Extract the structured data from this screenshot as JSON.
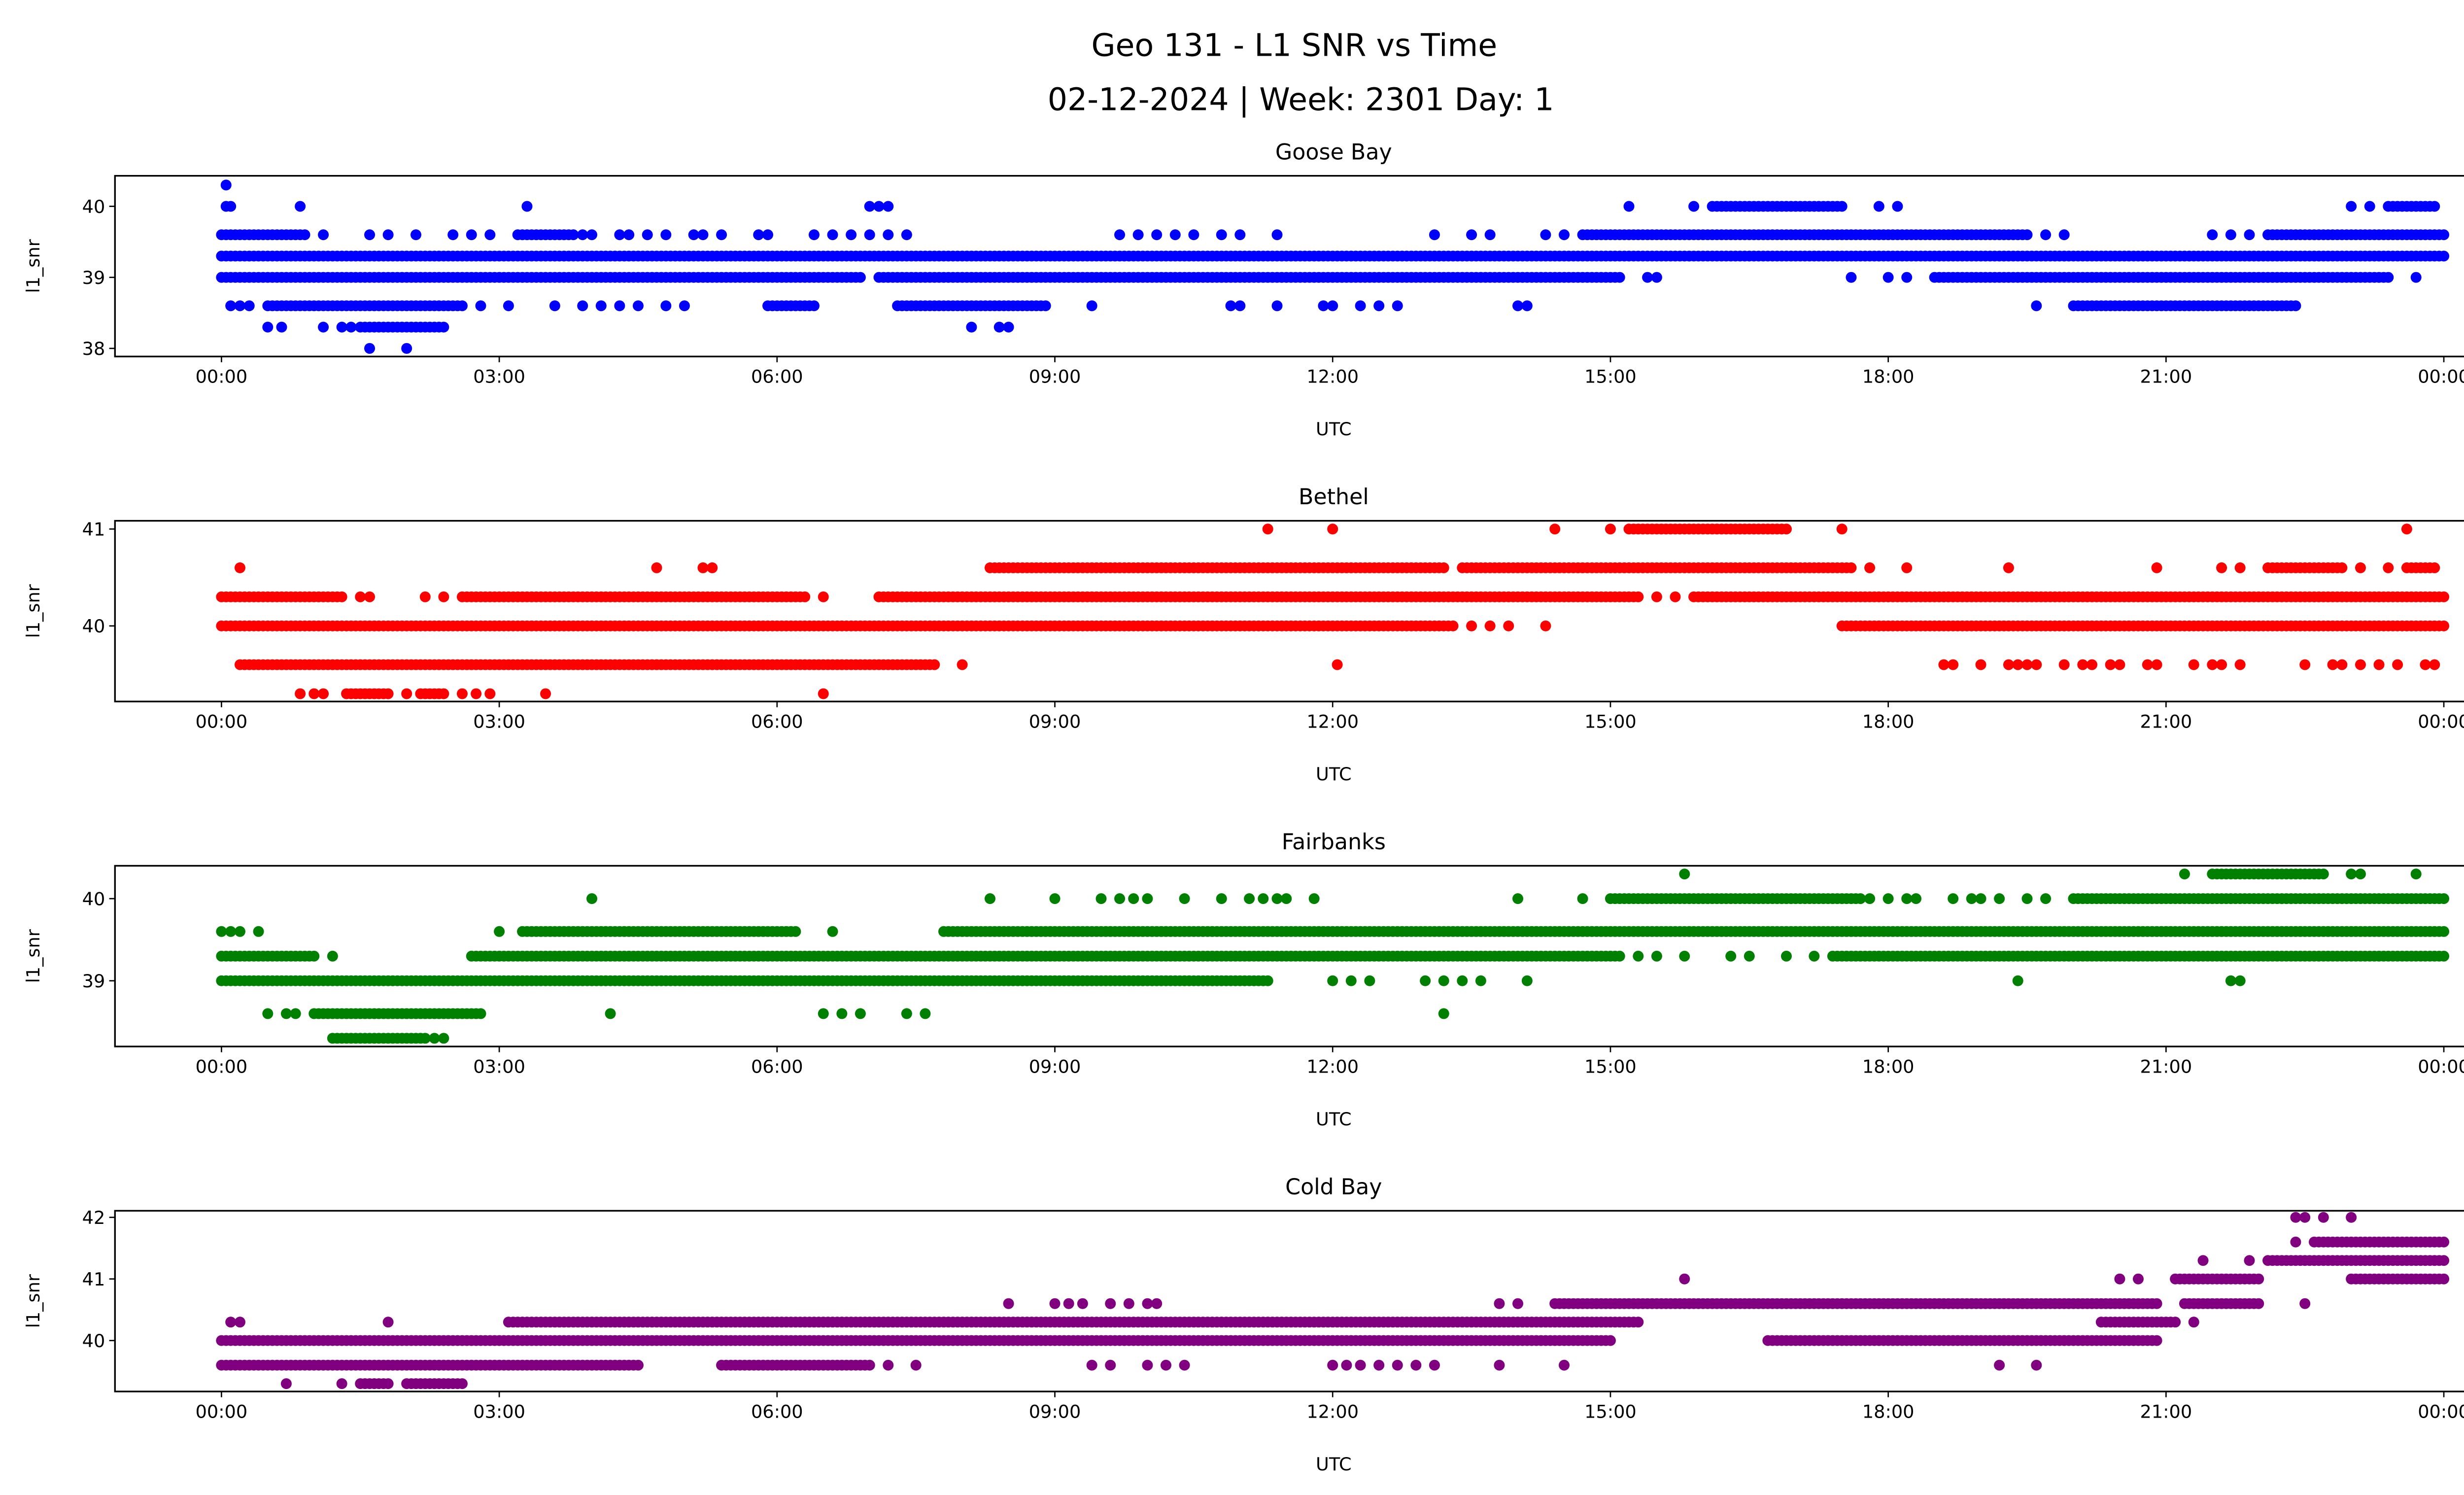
{
  "title": {
    "line1": "Geo 131 - L1 SNR vs Time",
    "line2": "02-12-2024 | Week: 2301 Day: 1"
  },
  "chart_data": [
    {
      "type": "scatter",
      "title": "Goose Bay",
      "xlabel": "UTC",
      "ylabel": "l1_snr",
      "color": "#0000ff",
      "xlim": [
        -1.15,
        25.19
      ],
      "ylim": [
        37.886,
        40.43
      ],
      "xticks": [
        {
          "v": 0,
          "label": "00:00"
        },
        {
          "v": 3,
          "label": "03:00"
        },
        {
          "v": 6,
          "label": "06:00"
        },
        {
          "v": 9,
          "label": "09:00"
        },
        {
          "v": 12,
          "label": "12:00"
        },
        {
          "v": 15,
          "label": "15:00"
        },
        {
          "v": 18,
          "label": "18:00"
        },
        {
          "v": 21,
          "label": "21:00"
        },
        {
          "v": 24,
          "label": "00:00"
        }
      ],
      "yticks": [
        38,
        39,
        40
      ],
      "levels": [
        {
          "y": 40.3,
          "runs": [],
          "points": [
            0.05
          ]
        },
        {
          "y": 40.0,
          "runs": [
            [
              16.1,
              17.5
            ],
            [
              23.4,
              23.9
            ]
          ],
          "points": [
            0.05,
            0.1,
            0.85,
            3.3,
            7.0,
            7.1,
            7.2,
            15.2,
            15.9,
            17.9,
            18.1,
            23.0,
            23.2
          ]
        },
        {
          "y": 39.6,
          "runs": [
            [
              0,
              0.9
            ],
            [
              3.2,
              3.8
            ],
            [
              14.7,
              19.5
            ],
            [
              22.1,
              24
            ]
          ],
          "points": [
            1.1,
            1.6,
            1.8,
            2.1,
            2.5,
            2.7,
            2.9,
            3.9,
            4.0,
            4.3,
            4.4,
            4.6,
            4.8,
            5.1,
            5.2,
            5.4,
            5.8,
            5.9,
            6.4,
            6.6,
            6.8,
            7.0,
            7.2,
            7.4,
            9.7,
            9.9,
            10.1,
            10.3,
            10.5,
            10.8,
            11.0,
            11.4,
            13.1,
            13.5,
            13.7,
            14.3,
            14.5,
            19.7,
            19.9,
            21.5,
            21.7,
            21.9
          ]
        },
        {
          "y": 39.3,
          "runs": [
            [
              0,
              24
            ]
          ],
          "points": []
        },
        {
          "y": 39.0,
          "runs": [
            [
              0,
              6.9
            ],
            [
              7.1,
              15.1
            ],
            [
              18.5,
              23.4
            ]
          ],
          "points": [
            15.4,
            15.5,
            17.6,
            18.0,
            18.2,
            23.7
          ]
        },
        {
          "y": 38.6,
          "runs": [
            [
              0.5,
              2.6
            ],
            [
              5.9,
              6.4
            ],
            [
              7.3,
              8.9
            ],
            [
              20.0,
              22.4
            ]
          ],
          "points": [
            0.1,
            0.2,
            0.3,
            2.8,
            3.1,
            3.6,
            3.9,
            4.1,
            4.3,
            4.5,
            4.8,
            5.0,
            9.4,
            10.9,
            11.0,
            11.4,
            11.9,
            12.0,
            12.3,
            12.5,
            12.7,
            14.0,
            14.1,
            19.6
          ]
        },
        {
          "y": 38.3,
          "runs": [
            [
              1.5,
              2.4
            ]
          ],
          "points": [
            0.5,
            0.65,
            1.1,
            1.3,
            1.4,
            8.1,
            8.4,
            8.5
          ]
        },
        {
          "y": 38.0,
          "runs": [],
          "points": [
            1.6,
            2.0
          ]
        }
      ]
    },
    {
      "type": "scatter",
      "title": "Bethel",
      "xlabel": "UTC",
      "ylabel": "l1_snr",
      "color": "#ff0000",
      "xlim": [
        -1.15,
        25.19
      ],
      "ylim": [
        39.22,
        41.085
      ],
      "xticks": [
        {
          "v": 0,
          "label": "00:00"
        },
        {
          "v": 3,
          "label": "03:00"
        },
        {
          "v": 6,
          "label": "06:00"
        },
        {
          "v": 9,
          "label": "09:00"
        },
        {
          "v": 12,
          "label": "12:00"
        },
        {
          "v": 15,
          "label": "15:00"
        },
        {
          "v": 18,
          "label": "18:00"
        },
        {
          "v": 21,
          "label": "21:00"
        },
        {
          "v": 24,
          "label": "00:00"
        }
      ],
      "yticks": [
        40,
        41
      ],
      "levels": [
        {
          "y": 41.0,
          "runs": [
            [
              15.2,
              16.9
            ]
          ],
          "points": [
            11.3,
            12.0,
            14.4,
            15.0,
            17.5,
            23.6
          ]
        },
        {
          "y": 40.6,
          "runs": [
            [
              8.3,
              13.2
            ],
            [
              13.4,
              17.6
            ],
            [
              22.1,
              22.9
            ],
            [
              23.6,
              23.9
            ]
          ],
          "points": [
            0.2,
            4.7,
            5.2,
            5.3,
            17.8,
            18.2,
            19.3,
            20.9,
            21.6,
            21.8,
            23.1,
            23.4
          ]
        },
        {
          "y": 40.3,
          "runs": [
            [
              0,
              1.3
            ],
            [
              2.6,
              6.3
            ],
            [
              7.1,
              15.3
            ],
            [
              15.9,
              24
            ]
          ],
          "points": [
            1.5,
            1.6,
            2.2,
            2.4,
            6.5,
            15.5,
            15.7
          ]
        },
        {
          "y": 40.0,
          "runs": [
            [
              0,
              13.3
            ],
            [
              17.5,
              24
            ]
          ],
          "points": [
            13.5,
            13.7,
            13.9,
            14.3
          ]
        },
        {
          "y": 39.6,
          "runs": [
            [
              0.2,
              7.7
            ]
          ],
          "points": [
            8.0,
            12.05,
            18.6,
            18.7,
            19.0,
            19.3,
            19.4,
            19.5,
            19.6,
            19.9,
            20.1,
            20.2,
            20.4,
            20.5,
            20.8,
            20.9,
            21.3,
            21.5,
            21.6,
            21.8,
            22.5,
            22.8,
            22.9,
            23.1,
            23.3,
            23.5,
            23.8,
            23.9
          ]
        },
        {
          "y": 39.3,
          "runs": [
            [
              1.35,
              1.8
            ],
            [
              2.15,
              2.4
            ]
          ],
          "points": [
            0.85,
            1.0,
            1.1,
            2.0,
            2.6,
            2.75,
            2.9,
            3.5,
            6.5
          ]
        }
      ]
    },
    {
      "type": "scatter",
      "title": "Fairbanks",
      "xlabel": "UTC",
      "ylabel": "l1_snr",
      "color": "#008000",
      "xlim": [
        -1.15,
        25.19
      ],
      "ylim": [
        38.2,
        40.4
      ],
      "xticks": [
        {
          "v": 0,
          "label": "00:00"
        },
        {
          "v": 3,
          "label": "03:00"
        },
        {
          "v": 6,
          "label": "06:00"
        },
        {
          "v": 9,
          "label": "09:00"
        },
        {
          "v": 12,
          "label": "12:00"
        },
        {
          "v": 15,
          "label": "15:00"
        },
        {
          "v": 18,
          "label": "18:00"
        },
        {
          "v": 21,
          "label": "21:00"
        },
        {
          "v": 24,
          "label": "00:00"
        }
      ],
      "yticks": [
        39,
        40
      ],
      "levels": [
        {
          "y": 40.3,
          "runs": [
            [
              21.5,
              22.7
            ]
          ],
          "points": [
            15.8,
            21.2,
            23.0,
            23.1,
            23.7
          ]
        },
        {
          "y": 40.0,
          "runs": [
            [
              15.0,
              17.7
            ],
            [
              20.0,
              24
            ]
          ],
          "points": [
            4.0,
            8.3,
            9.0,
            9.5,
            9.7,
            9.85,
            10.0,
            10.4,
            10.8,
            11.1,
            11.25,
            11.4,
            11.5,
            11.8,
            14.0,
            14.7,
            17.8,
            18.0,
            18.2,
            18.3,
            18.7,
            18.9,
            19.0,
            19.2,
            19.5,
            19.7
          ]
        },
        {
          "y": 39.6,
          "runs": [
            [
              3.25,
              6.2
            ],
            [
              7.8,
              24
            ]
          ],
          "points": [
            0.0,
            0.1,
            0.2,
            0.4,
            3.0,
            6.6
          ]
        },
        {
          "y": 39.3,
          "runs": [
            [
              0,
              1.0
            ],
            [
              2.7,
              15.1
            ],
            [
              17.4,
              24
            ]
          ],
          "points": [
            1.2,
            15.3,
            15.5,
            15.8,
            16.3,
            16.5,
            16.9,
            17.2
          ]
        },
        {
          "y": 39.0,
          "runs": [
            [
              0,
              11.3
            ]
          ],
          "points": [
            12.0,
            12.2,
            12.4,
            13.0,
            13.2,
            13.4,
            13.6,
            14.1,
            19.4,
            21.7,
            21.8
          ]
        },
        {
          "y": 38.6,
          "runs": [
            [
              1.0,
              2.8
            ]
          ],
          "points": [
            0.5,
            0.7,
            0.8,
            4.2,
            6.5,
            6.7,
            6.9,
            7.4,
            7.6,
            13.2
          ]
        },
        {
          "y": 38.3,
          "runs": [
            [
              1.2,
              2.2
            ]
          ],
          "points": [
            2.3,
            2.4
          ]
        }
      ]
    },
    {
      "type": "scatter",
      "title": "Cold Bay",
      "xlabel": "UTC",
      "ylabel": "l1_snr",
      "color": "#800080",
      "xlim": [
        -1.15,
        25.19
      ],
      "ylim": [
        39.173,
        42.107
      ],
      "xticks": [
        {
          "v": 0,
          "label": "00:00"
        },
        {
          "v": 3,
          "label": "03:00"
        },
        {
          "v": 6,
          "label": "06:00"
        },
        {
          "v": 9,
          "label": "09:00"
        },
        {
          "v": 12,
          "label": "12:00"
        },
        {
          "v": 15,
          "label": "15:00"
        },
        {
          "v": 18,
          "label": "18:00"
        },
        {
          "v": 21,
          "label": "21:00"
        },
        {
          "v": 24,
          "label": "00:00"
        }
      ],
      "yticks": [
        40,
        41,
        42
      ],
      "levels": [
        {
          "y": 42.0,
          "runs": [],
          "points": [
            22.4,
            22.5,
            22.7,
            23.0
          ]
        },
        {
          "y": 41.6,
          "runs": [
            [
              22.6,
              24
            ]
          ],
          "points": [
            22.4
          ]
        },
        {
          "y": 41.3,
          "runs": [
            [
              22.1,
              24
            ]
          ],
          "points": [
            21.4,
            21.9
          ]
        },
        {
          "y": 41.0,
          "runs": [
            [
              21.1,
              22.0
            ],
            [
              23.0,
              24
            ]
          ],
          "points": [
            15.8,
            20.5,
            20.7
          ]
        },
        {
          "y": 40.6,
          "runs": [
            [
              14.4,
              20.9
            ],
            [
              21.2,
              22.0
            ]
          ],
          "points": [
            8.5,
            9.0,
            9.15,
            9.3,
            9.6,
            9.8,
            10.0,
            10.1,
            13.8,
            14.0,
            22.5
          ]
        },
        {
          "y": 40.3,
          "runs": [
            [
              3.1,
              15.3
            ],
            [
              20.3,
              21.1
            ]
          ],
          "points": [
            0.1,
            0.2,
            1.8,
            21.3
          ]
        },
        {
          "y": 40.0,
          "runs": [
            [
              0,
              15.0
            ],
            [
              16.7,
              20.9
            ]
          ],
          "points": []
        },
        {
          "y": 39.6,
          "runs": [
            [
              0,
              4.5
            ],
            [
              5.4,
              7.0
            ]
          ],
          "points": [
            7.2,
            7.5,
            9.4,
            9.6,
            10.0,
            10.2,
            10.4,
            12.0,
            12.15,
            12.3,
            12.5,
            12.7,
            12.9,
            13.1,
            13.8,
            14.5,
            19.2,
            19.6
          ]
        },
        {
          "y": 39.3,
          "runs": [
            [
              1.5,
              1.8
            ],
            [
              2.0,
              2.6
            ]
          ],
          "points": [
            0.7,
            1.3
          ]
        }
      ]
    }
  ]
}
